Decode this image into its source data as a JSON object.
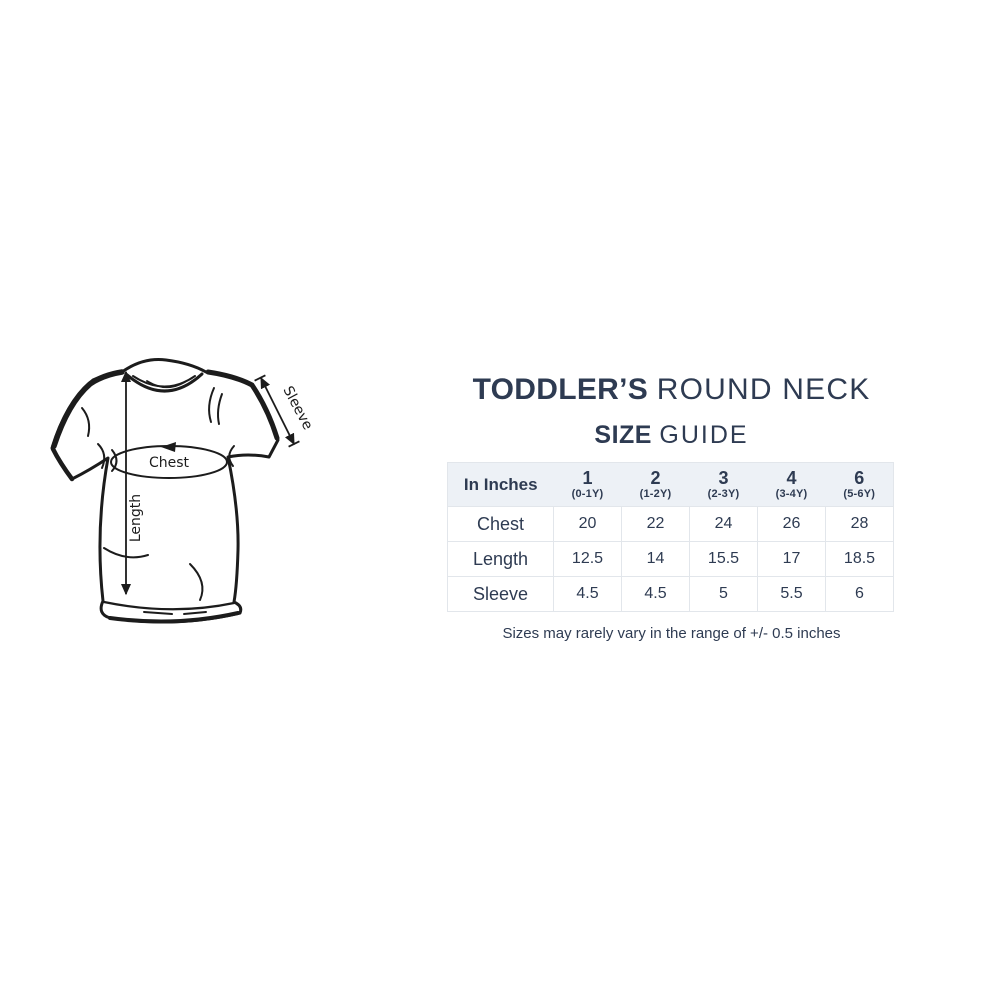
{
  "title": {
    "bold": "TODDLER’S",
    "light": "ROUND NECK"
  },
  "subtitle": {
    "bold": "SIZE",
    "light": "GUIDE"
  },
  "diagram": {
    "length_label": "Length",
    "chest_label": "Chest",
    "sleeve_label": "Sleeve"
  },
  "table": {
    "unit_header": "In Inches",
    "columns": [
      {
        "size": "1",
        "age": "(0-1Y)"
      },
      {
        "size": "2",
        "age": "(1-2Y)"
      },
      {
        "size": "3",
        "age": "(2-3Y)"
      },
      {
        "size": "4",
        "age": "(3-4Y)"
      },
      {
        "size": "6",
        "age": "(5-6Y)"
      }
    ],
    "rows": [
      {
        "label": "Chest",
        "values": [
          "20",
          "22",
          "24",
          "26",
          "28"
        ]
      },
      {
        "label": "Length",
        "values": [
          "12.5",
          "14",
          "15.5",
          "17",
          "18.5"
        ]
      },
      {
        "label": "Sleeve",
        "values": [
          "4.5",
          "4.5",
          "5",
          "5.5",
          "6"
        ]
      }
    ]
  },
  "note": "Sizes may rarely vary in the range of +/- 0.5 inches",
  "colors": {
    "navy": "#2e3b52",
    "header_bg": "#edf1f6",
    "border": "#e2e6eb",
    "ink": "#1c1c1c"
  }
}
